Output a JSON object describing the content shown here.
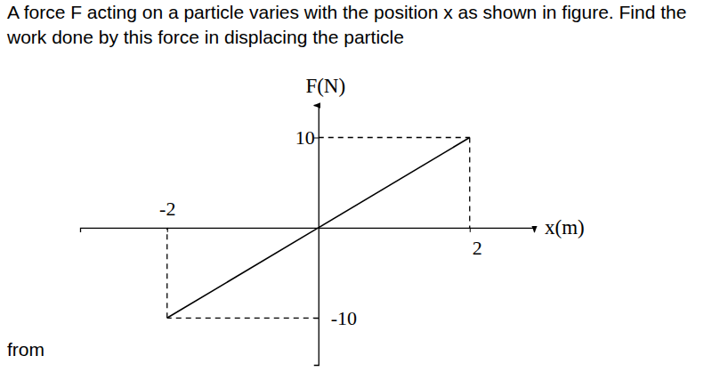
{
  "chart_data": {
    "type": "line",
    "title": "A force F acting on a particle varies with the position x as shown in figure. Find the work done by this force in displacing the particle",
    "annotations": [
      "from"
    ],
    "x_label": "x(m)",
    "y_label": "F(N)",
    "x": [
      -2,
      0,
      2
    ],
    "values": [
      -10,
      0,
      10
    ],
    "color": "#000000",
    "xlim": [
      -3.15,
      2.85
    ],
    "ylim": [
      -15.2,
      13.6
    ],
    "xticks": [
      -2,
      2
    ],
    "yticks": [
      -10,
      10
    ],
    "grid": false
  }
}
